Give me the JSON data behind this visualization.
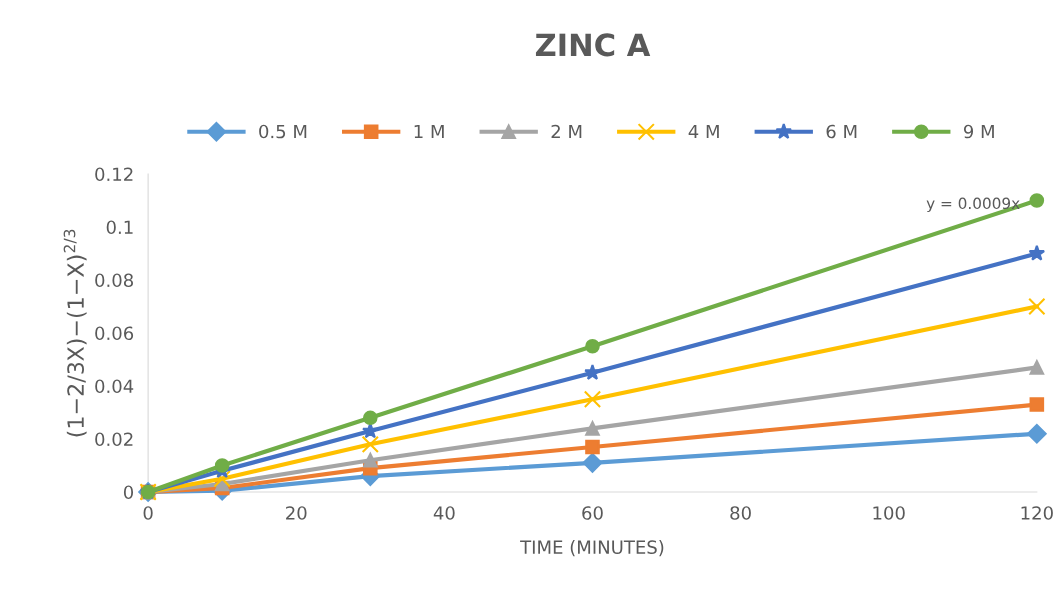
{
  "chart_data": {
    "type": "line",
    "title": "ZINC A",
    "xlabel": "TIME (MINUTES)",
    "ylabel": "(1−2/3X)−(1−X)$^{2/3}$",
    "x": [
      0,
      10,
      30,
      60,
      120
    ],
    "series": [
      {
        "name": "0.5 M",
        "color": "#5b9bd5",
        "marker": "diamond",
        "values": [
          0,
          0.0005,
          0.006,
          0.011,
          0.022
        ]
      },
      {
        "name": "1 M",
        "color": "#ed7d31",
        "marker": "square",
        "values": [
          0,
          0.0015,
          0.009,
          0.017,
          0.033
        ]
      },
      {
        "name": "2 M",
        "color": "#a5a5a5",
        "marker": "triangle",
        "values": [
          0,
          0.003,
          0.012,
          0.024,
          0.047
        ]
      },
      {
        "name": "4 M",
        "color": "#ffc000",
        "marker": "cross",
        "values": [
          0,
          0.005,
          0.018,
          0.035,
          0.07
        ]
      },
      {
        "name": "6 M",
        "color": "#4472c4",
        "marker": "star",
        "values": [
          0,
          0.008,
          0.023,
          0.045,
          0.09
        ]
      },
      {
        "name": "9 M",
        "color": "#70ad47",
        "marker": "circle",
        "values": [
          0,
          0.01,
          0.028,
          0.055,
          0.11
        ]
      }
    ],
    "annotations": [
      {
        "text": "y = 0.0009x",
        "x": 120,
        "y": 0.11
      }
    ],
    "xlim": [
      0,
      120
    ],
    "xticks": [
      0,
      20,
      40,
      60,
      80,
      100,
      120
    ],
    "ylim": [
      0,
      0.12
    ],
    "yticks": [
      0,
      0.02,
      0.04,
      0.06,
      0.08,
      0.1,
      0.12
    ],
    "legend": "top",
    "grid": false,
    "line_style": "solid"
  }
}
